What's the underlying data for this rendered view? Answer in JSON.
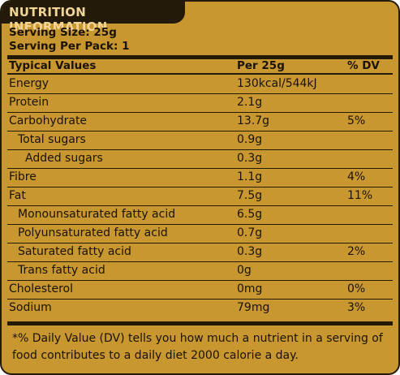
{
  "header": {
    "title": "NUTRITION INFORMATION"
  },
  "serving": {
    "size": "Serving Size: 25g",
    "per_pack": "Serving Per Pack: 1"
  },
  "table": {
    "columns": [
      "Typical Values",
      "Per 25g",
      "% DV"
    ],
    "rows": [
      {
        "name": "Energy",
        "per": "130kcal/544kJ",
        "dv": ""
      },
      {
        "name": "Protein",
        "per": "2.1g",
        "dv": ""
      },
      {
        "name": "Carbohydrate",
        "per": "13.7g",
        "dv": "5%"
      },
      {
        "name": "Total sugars",
        "per": "0.9g",
        "dv": ""
      },
      {
        "name": "Added sugars",
        "per": "0.3g",
        "dv": ""
      },
      {
        "name": "Fibre",
        "per": "1.1g",
        "dv": "4%"
      },
      {
        "name": "Fat",
        "per": "7.5g",
        "dv": "11%"
      },
      {
        "name": "Monounsaturated fatty acid",
        "per": "6.5g",
        "dv": ""
      },
      {
        "name": "Polyunsaturated fatty acid",
        "per": "0.7g",
        "dv": ""
      },
      {
        "name": "Saturated fatty acid",
        "per": "0.3g",
        "dv": "2%"
      },
      {
        "name": "Trans fatty acid",
        "per": "0g",
        "dv": ""
      },
      {
        "name": "Cholesterol",
        "per": "0mg",
        "dv": "0%"
      },
      {
        "name": "Sodium",
        "per": "79mg",
        "dv": "3%"
      }
    ]
  },
  "footnote": "*% Daily Value (DV) tells you how much a nutrient in a serving of food contributes to a daily diet 2000 calorie a day.",
  "colors": {
    "background": "#c9972f",
    "ink": "#231a0a",
    "title_text": "#f1d597"
  }
}
